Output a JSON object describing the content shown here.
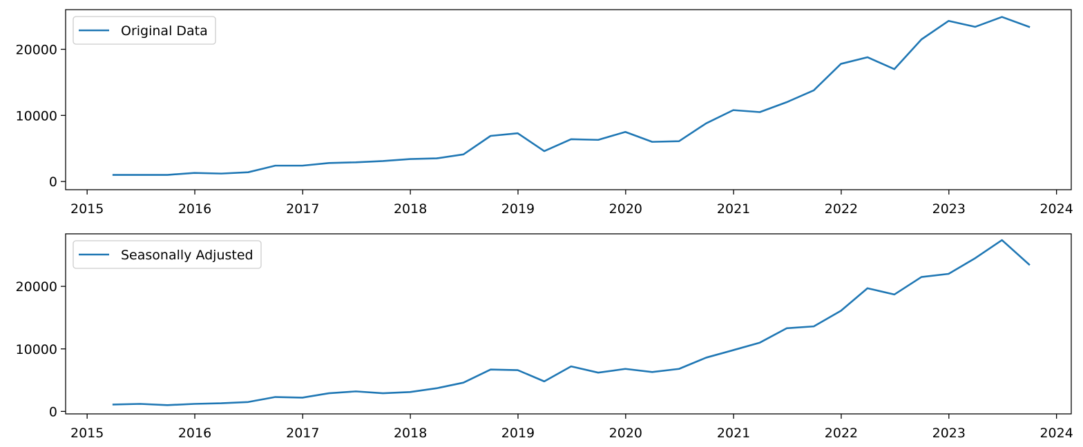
{
  "colors": {
    "line": "#1f77b4",
    "axes": "#000000",
    "background": "#ffffff",
    "legend_border": "#cccccc"
  },
  "chart_data": [
    {
      "type": "line",
      "legend": {
        "placement": "upper-left",
        "label": "Original Data"
      },
      "grid": false,
      "x_ticks": [
        "2015",
        "2016",
        "2017",
        "2018",
        "2019",
        "2020",
        "2021",
        "2022",
        "2023",
        "2024"
      ],
      "x_tick_values": [
        "2015-01-01",
        "2016-01-01",
        "2017-01-01",
        "2018-01-01",
        "2019-01-01",
        "2020-01-01",
        "2021-01-01",
        "2022-01-01",
        "2023-01-01",
        "2024-01-01"
      ],
      "y_ticks": [
        0,
        10000,
        20000
      ],
      "xlim": [
        "2014-10-20",
        "2024-02-20"
      ],
      "ylim": [
        -1240,
        26000
      ],
      "series": [
        {
          "name": "Original Data",
          "x": [
            "2015-03-31",
            "2015-06-30",
            "2015-09-30",
            "2015-12-31",
            "2016-03-31",
            "2016-06-30",
            "2016-09-30",
            "2016-12-31",
            "2017-03-31",
            "2017-06-30",
            "2017-09-30",
            "2017-12-31",
            "2018-03-31",
            "2018-06-30",
            "2018-09-30",
            "2018-12-31",
            "2019-03-31",
            "2019-06-30",
            "2019-09-30",
            "2019-12-31",
            "2020-03-31",
            "2020-06-30",
            "2020-09-30",
            "2020-12-31",
            "2021-03-31",
            "2021-06-30",
            "2021-09-30",
            "2021-12-31",
            "2022-03-31",
            "2022-06-30",
            "2022-09-30",
            "2022-12-31",
            "2023-03-31",
            "2023-06-30",
            "2023-09-30"
          ],
          "values": [
            1000,
            1000,
            1000,
            1300,
            1200,
            1400,
            2400,
            2400,
            2800,
            2900,
            3100,
            3400,
            3500,
            4100,
            6900,
            7300,
            4600,
            6400,
            6300,
            7500,
            6000,
            6100,
            8800,
            10800,
            10500,
            12000,
            13800,
            17800,
            18800,
            17000,
            21500,
            24300,
            23400,
            24900,
            23400
          ]
        }
      ]
    },
    {
      "type": "line",
      "legend": {
        "placement": "upper-left",
        "label": "Seasonally Adjusted"
      },
      "grid": false,
      "x_ticks": [
        "2015",
        "2016",
        "2017",
        "2018",
        "2019",
        "2020",
        "2021",
        "2022",
        "2023",
        "2024"
      ],
      "x_tick_values": [
        "2015-01-01",
        "2016-01-01",
        "2017-01-01",
        "2018-01-01",
        "2019-01-01",
        "2020-01-01",
        "2021-01-01",
        "2022-01-01",
        "2023-01-01",
        "2024-01-01"
      ],
      "y_ticks": [
        0,
        10000,
        20000
      ],
      "xlim": [
        "2014-10-20",
        "2024-02-20"
      ],
      "ylim": [
        -400,
        28400
      ],
      "series": [
        {
          "name": "Seasonally Adjusted",
          "x": [
            "2015-03-31",
            "2015-06-30",
            "2015-09-30",
            "2015-12-31",
            "2016-03-31",
            "2016-06-30",
            "2016-09-30",
            "2016-12-31",
            "2017-03-31",
            "2017-06-30",
            "2017-09-30",
            "2017-12-31",
            "2018-03-31",
            "2018-06-30",
            "2018-09-30",
            "2018-12-31",
            "2019-03-31",
            "2019-06-30",
            "2019-09-30",
            "2019-12-31",
            "2020-03-31",
            "2020-06-30",
            "2020-09-30",
            "2020-12-31",
            "2021-03-31",
            "2021-06-30",
            "2021-09-30",
            "2021-12-31",
            "2022-03-31",
            "2022-06-30",
            "2022-09-30",
            "2022-12-31",
            "2023-03-31",
            "2023-06-30",
            "2023-09-30"
          ],
          "values": [
            1100,
            1200,
            1000,
            1200,
            1300,
            1500,
            2300,
            2200,
            2900,
            3200,
            2900,
            3100,
            3700,
            4600,
            6700,
            6600,
            4800,
            7200,
            6200,
            6800,
            6300,
            6800,
            8600,
            9800,
            11000,
            13300,
            13600,
            16100,
            19700,
            18700,
            21500,
            22000,
            24500,
            27400,
            23500
          ]
        }
      ]
    }
  ]
}
